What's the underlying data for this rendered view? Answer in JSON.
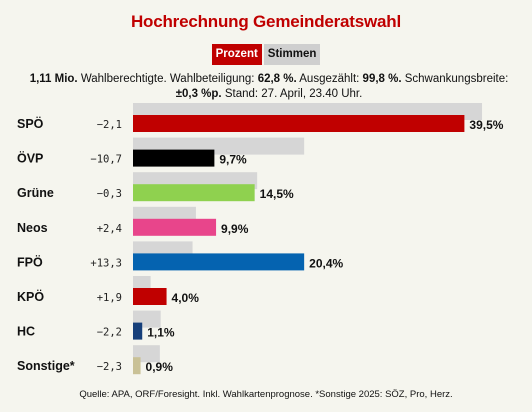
{
  "title": "Hochrechnung Gemeinderatswahl",
  "toggle": {
    "active": "Prozent",
    "inactive": "Stimmen"
  },
  "info": {
    "eligible_value": "1,11 Mio.",
    "eligible_label": " Wahlberechtigte. Wahlbeteiligung: ",
    "turnout_value": "62,8 %.",
    "counted_label": " Ausgezählt: ",
    "counted_value": "99,8 %.",
    "margin_label": " Schwankungsbreite: ",
    "margin_value": "±0,3 %p.",
    "status_label": " Stand: 27. April, 23.40 Uhr."
  },
  "source": "Quelle: APA, ORF/Foresight. Inkl. Wahlkartenprognose. *Sonstige 2025: SÖZ, Pro, Herz.",
  "chart_data": {
    "type": "bar",
    "orientation": "horizontal",
    "categories": [
      "SPÖ",
      "ÖVP",
      "Grüne",
      "Neos",
      "FPÖ",
      "KPÖ",
      "HC",
      "Sonstige*"
    ],
    "changes": [
      "−2,1",
      "−10,7",
      "−0,3",
      "+2,4",
      "+13,3",
      "+1,9",
      "−2,2",
      "−2,3"
    ],
    "value_labels": [
      "39,5%",
      "9,7%",
      "14,5%",
      "9,9%",
      "20,4%",
      "4,0%",
      "1,1%",
      "0,9%"
    ],
    "values": [
      39.5,
      9.7,
      14.5,
      9.9,
      20.4,
      4.0,
      1.1,
      0.9
    ],
    "previous_values": [
      41.6,
      20.4,
      14.8,
      7.5,
      7.1,
      2.1,
      3.3,
      3.2
    ],
    "colors": [
      "#c00000",
      "#000000",
      "#8fd14f",
      "#e8458b",
      "#0563b0",
      "#c00000",
      "#163f7a",
      "#c9c196"
    ],
    "previous_color": "#d6d6d6"
  }
}
